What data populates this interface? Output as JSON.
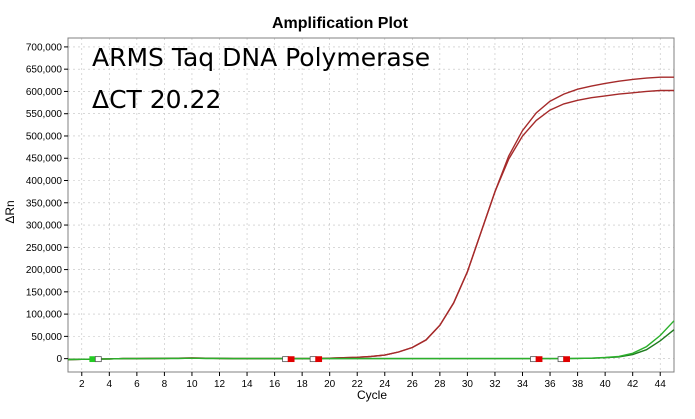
{
  "chart_data": {
    "type": "line",
    "title": "Amplification Plot",
    "xlabel": "Cycle",
    "ylabel": "ΔRn",
    "annotations": [
      "ARMS Taq DNA Polymerase",
      "ΔCT 20.22"
    ],
    "xlim": [
      1,
      45
    ],
    "ylim": [
      -30000,
      720000
    ],
    "x_ticks": [
      2,
      4,
      6,
      8,
      10,
      12,
      14,
      16,
      18,
      20,
      22,
      24,
      26,
      28,
      30,
      32,
      34,
      36,
      38,
      40,
      42,
      44
    ],
    "y_ticks": [
      0,
      50000,
      100000,
      150000,
      200000,
      250000,
      300000,
      350000,
      400000,
      450000,
      500000,
      550000,
      600000,
      650000,
      700000
    ],
    "y_tick_labels": [
      "0",
      "50,000",
      "100,000",
      "150,000",
      "200,000",
      "250,000",
      "300,000",
      "350,000",
      "400,000",
      "450,000",
      "500,000",
      "550,000",
      "600,000",
      "650,000",
      "700,000"
    ],
    "grid": true,
    "colors": {
      "dark_red": "#a52a2a",
      "dark_green": "#1e7b1e",
      "bright_green": "#2bb02b",
      "grid": "#c0c0c0",
      "baseline_marker": "#e00000",
      "start_marker": "#22cc22"
    },
    "x": [
      1,
      2,
      3,
      4,
      5,
      6,
      7,
      8,
      9,
      10,
      11,
      12,
      13,
      14,
      15,
      16,
      17,
      18,
      19,
      20,
      21,
      22,
      23,
      24,
      25,
      26,
      27,
      28,
      29,
      30,
      31,
      32,
      33,
      34,
      35,
      36,
      37,
      38,
      39,
      40,
      41,
      42,
      43,
      44,
      45
    ],
    "series": [
      {
        "color": "#a52a2a",
        "values": [
          -2000,
          -1500,
          -1000,
          -500,
          0,
          0,
          500,
          500,
          1000,
          1500,
          1000,
          500,
          0,
          0,
          0,
          0,
          0,
          0,
          0,
          1000,
          2000,
          3000,
          5000,
          8000,
          15000,
          25000,
          42000,
          75000,
          125000,
          195000,
          285000,
          375000,
          455000,
          512000,
          552000,
          578000,
          594000,
          605000,
          612000,
          618000,
          623000,
          627000,
          630000,
          632000,
          632000
        ]
      },
      {
        "color": "#a52a2a",
        "values": [
          -2000,
          -1500,
          -1000,
          -500,
          0,
          0,
          500,
          500,
          1000,
          1500,
          1000,
          500,
          0,
          0,
          0,
          0,
          0,
          0,
          0,
          1000,
          2000,
          3000,
          5000,
          8000,
          15000,
          25000,
          42000,
          75000,
          125000,
          195000,
          285000,
          375000,
          448000,
          500000,
          535000,
          558000,
          572000,
          580000,
          586000,
          590000,
          594000,
          597000,
          600000,
          602000,
          602000
        ]
      },
      {
        "color": "#1e7b1e",
        "values": [
          -2000,
          -1500,
          -1000,
          -500,
          0,
          0,
          0,
          500,
          500,
          1000,
          500,
          500,
          0,
          0,
          0,
          0,
          0,
          0,
          0,
          0,
          0,
          0,
          0,
          0,
          0,
          0,
          0,
          0,
          0,
          0,
          0,
          0,
          0,
          0,
          0,
          0,
          0,
          500,
          1000,
          2000,
          4000,
          9000,
          20000,
          40000,
          65000
        ]
      },
      {
        "color": "#2bb02b",
        "values": [
          -2000,
          -1500,
          -1000,
          -500,
          0,
          0,
          0,
          500,
          500,
          1000,
          500,
          500,
          0,
          0,
          0,
          0,
          0,
          0,
          0,
          0,
          0,
          0,
          0,
          0,
          0,
          0,
          0,
          0,
          0,
          0,
          0,
          0,
          0,
          0,
          0,
          0,
          0,
          500,
          1000,
          2500,
          5000,
          12000,
          27000,
          52000,
          85000
        ]
      }
    ],
    "markers": [
      {
        "x": 2.8,
        "color": "#22cc22",
        "filled": true
      },
      {
        "x": 3.2,
        "color": "#22cc22",
        "filled": false
      },
      {
        "x": 16.8,
        "color": "#e00000",
        "filled": false
      },
      {
        "x": 17.2,
        "color": "#e00000",
        "filled": true
      },
      {
        "x": 18.8,
        "color": "#e00000",
        "filled": false
      },
      {
        "x": 19.2,
        "color": "#e00000",
        "filled": true
      },
      {
        "x": 34.8,
        "color": "#e00000",
        "filled": false
      },
      {
        "x": 35.2,
        "color": "#e00000",
        "filled": true
      },
      {
        "x": 36.8,
        "color": "#e00000",
        "filled": false
      },
      {
        "x": 37.2,
        "color": "#e00000",
        "filled": true
      }
    ]
  }
}
